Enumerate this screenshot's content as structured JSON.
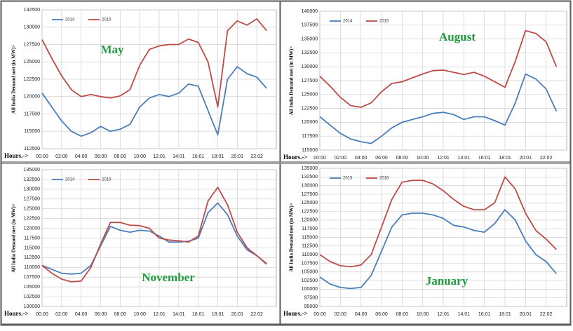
{
  "chart_data": [
    {
      "type": "line",
      "annotation": "May",
      "x_label": "Hours.->",
      "y_label": "All India Demand met (in MW)>",
      "categories": [
        "00:00",
        null,
        "02:00",
        null,
        "04:00",
        null,
        "06:00",
        null,
        "08:00",
        null,
        "10:00",
        null,
        "12:01",
        null,
        "14:01",
        null,
        "16:01",
        null,
        "18:01",
        null,
        "20:01",
        null,
        "22:02",
        null
      ],
      "series": [
        {
          "name": "2014",
          "color": "#4a7ebb",
          "values": [
            120500,
            118500,
            116500,
            115000,
            114300,
            114800,
            115700,
            115000,
            115300,
            116000,
            118500,
            119800,
            120300,
            120000,
            120500,
            121800,
            121500,
            118000,
            114500,
            122500,
            124300,
            123300,
            122800,
            121200
          ]
        },
        {
          "name": "2015",
          "color": "#be4b48",
          "values": [
            128200,
            125500,
            123000,
            121000,
            120000,
            120300,
            120000,
            119800,
            120100,
            121000,
            124500,
            126800,
            127300,
            127500,
            127500,
            128300,
            127800,
            125000,
            118500,
            129500,
            130900,
            130300,
            131200,
            129500
          ]
        }
      ],
      "ylim": [
        112500,
        132500
      ],
      "yticks": [
        112500,
        115000,
        117500,
        120000,
        122500,
        125000,
        127500,
        130000,
        132500
      ],
      "grid": true,
      "legend": "top-left"
    },
    {
      "type": "line",
      "annotation": "August",
      "x_label": "Hours.->",
      "y_label": "All India Demand met (in MW)>",
      "categories": [
        "00:00",
        null,
        "02:00",
        null,
        "04:00",
        null,
        "06:00",
        null,
        "08:00",
        null,
        "10:00",
        null,
        "12:01",
        null,
        "14:01",
        null,
        "16:01",
        null,
        "18:01",
        null,
        "20:01",
        null,
        "22:02",
        null
      ],
      "series": [
        {
          "name": "2014",
          "color": "#4a7ebb",
          "values": [
            121000,
            119500,
            118000,
            117000,
            116500,
            116200,
            117500,
            119000,
            120000,
            120500,
            121000,
            121600,
            121800,
            121400,
            120500,
            121000,
            121000,
            120300,
            119500,
            123500,
            128700,
            127800,
            126000,
            122000
          ]
        },
        {
          "name": "2015",
          "color": "#be4b48",
          "values": [
            128300,
            126500,
            124500,
            123000,
            122700,
            123500,
            125500,
            127000,
            127300,
            128000,
            128700,
            129300,
            129400,
            129000,
            128600,
            129000,
            128300,
            127300,
            126300,
            131000,
            136500,
            136000,
            134500,
            130000
          ]
        }
      ],
      "ylim": [
        115000,
        140000
      ],
      "yticks": [
        115000,
        117500,
        120000,
        122500,
        125000,
        127500,
        130000,
        132500,
        135000,
        137500,
        140000
      ],
      "grid": true,
      "legend": "top-left"
    },
    {
      "type": "line",
      "annotation": "November",
      "x_label": "Hours.->",
      "y_label": "All India Demand met (in MW)>",
      "categories": [
        "00:00",
        null,
        "02:00",
        null,
        "04:00",
        null,
        "06:00",
        null,
        "08:00",
        null,
        "10:00",
        null,
        "12:01",
        null,
        "14:01",
        null,
        "16:01",
        null,
        "18:01",
        null,
        "20:01",
        null,
        "22:02",
        null
      ],
      "series": [
        {
          "name": "2014",
          "color": "#4a7ebb",
          "values": [
            110500,
            109500,
            108500,
            108300,
            108500,
            110500,
            115500,
            120500,
            119500,
            119000,
            119500,
            119300,
            118000,
            116500,
            116500,
            116700,
            117500,
            124000,
            126500,
            123500,
            118000,
            114500,
            113000,
            111000
          ]
        },
        {
          "name": "2015",
          "color": "#be4b48",
          "values": [
            110500,
            108500,
            107000,
            106300,
            106500,
            110000,
            116000,
            121500,
            121500,
            120800,
            120700,
            120000,
            117500,
            117000,
            116800,
            116500,
            118000,
            127000,
            130500,
            126000,
            119000,
            115000,
            113000,
            110800
          ]
        }
      ],
      "ylim": [
        100000,
        135000
      ],
      "yticks": [
        100000,
        102500,
        105000,
        107500,
        110000,
        112500,
        115000,
        117500,
        120000,
        122500,
        125000,
        127500,
        130000,
        132500,
        135000
      ],
      "grid": true,
      "legend": "top-left"
    },
    {
      "type": "line",
      "annotation": "January",
      "x_label": "Hours.->",
      "y_label": "All India Demand met (in MW)>",
      "categories": [
        "00:00",
        null,
        "02:00",
        null,
        "04:00",
        null,
        "06:00",
        null,
        "08:00",
        null,
        "10:00",
        null,
        "12:01",
        null,
        "14:01",
        null,
        "16:01",
        null,
        "18:01",
        null,
        "20:01",
        null,
        "22:02",
        null
      ],
      "series": [
        {
          "name": "2015",
          "color": "#4a7ebb",
          "values": [
            103500,
            101500,
            100500,
            100200,
            100500,
            104000,
            111000,
            118000,
            121500,
            122000,
            122000,
            121500,
            120500,
            118500,
            118000,
            117000,
            116500,
            119000,
            123000,
            120000,
            114000,
            110000,
            108000,
            104500
          ]
        },
        {
          "name": "2016",
          "color": "#be4b48",
          "values": [
            110000,
            108000,
            106800,
            106500,
            107000,
            110000,
            118000,
            126000,
            131000,
            131500,
            131500,
            130500,
            128500,
            126000,
            124000,
            123000,
            123000,
            125000,
            132500,
            129000,
            122000,
            117000,
            114500,
            111500
          ]
        }
      ],
      "ylim": [
        95000,
        135000
      ],
      "yticks": [
        95000,
        97500,
        100000,
        102500,
        105000,
        107500,
        110000,
        112500,
        115000,
        117500,
        120000,
        122500,
        125000,
        127500,
        130000,
        132500,
        135000
      ],
      "grid": true,
      "legend": "top-left"
    }
  ]
}
